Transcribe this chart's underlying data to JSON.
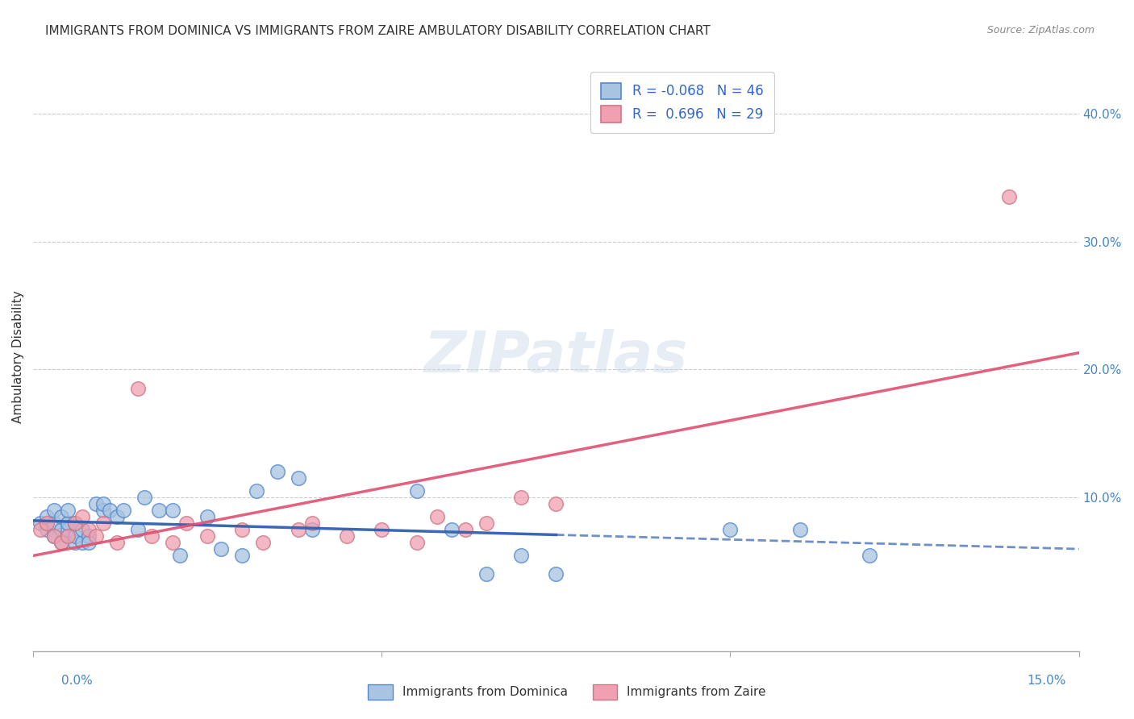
{
  "title": "IMMIGRANTS FROM DOMINICA VS IMMIGRANTS FROM ZAIRE AMBULATORY DISABILITY CORRELATION CHART",
  "source": "Source: ZipAtlas.com",
  "ylabel": "Ambulatory Disability",
  "yticks": [
    "40.0%",
    "30.0%",
    "20.0%",
    "10.0%"
  ],
  "ytick_vals": [
    0.4,
    0.3,
    0.2,
    0.1
  ],
  "xlim": [
    0.0,
    0.15
  ],
  "ylim": [
    -0.02,
    0.44
  ],
  "legend_r_dominica": "-0.068",
  "legend_n_dominica": "46",
  "legend_r_zaire": "0.696",
  "legend_n_zaire": "29",
  "color_dominica": "#a8c4e0",
  "color_dominica_edge": "#5588cc",
  "color_dominica_line": "#3060b0",
  "color_zaire": "#f0a0b0",
  "color_zaire_edge": "#cc7788",
  "color_zaire_line": "#e05070",
  "watermark": "ZIPatlas",
  "background_color": "#ffffff",
  "grid_color": "#cccccc",
  "dominica_x": [
    0.001,
    0.002,
    0.002,
    0.003,
    0.003,
    0.003,
    0.004,
    0.004,
    0.004,
    0.005,
    0.005,
    0.005,
    0.005,
    0.006,
    0.006,
    0.006,
    0.007,
    0.007,
    0.008,
    0.008,
    0.009,
    0.01,
    0.01,
    0.011,
    0.012,
    0.013,
    0.015,
    0.016,
    0.018,
    0.02,
    0.021,
    0.025,
    0.027,
    0.03,
    0.032,
    0.035,
    0.038,
    0.04,
    0.055,
    0.06,
    0.065,
    0.07,
    0.075,
    0.1,
    0.11,
    0.12
  ],
  "dominica_y": [
    0.08,
    0.075,
    0.085,
    0.07,
    0.08,
    0.09,
    0.065,
    0.075,
    0.085,
    0.07,
    0.075,
    0.08,
    0.09,
    0.065,
    0.07,
    0.08,
    0.065,
    0.075,
    0.07,
    0.065,
    0.095,
    0.09,
    0.095,
    0.09,
    0.085,
    0.09,
    0.075,
    0.1,
    0.09,
    0.09,
    0.055,
    0.085,
    0.06,
    0.055,
    0.105,
    0.12,
    0.115,
    0.075,
    0.105,
    0.075,
    0.04,
    0.055,
    0.04,
    0.075,
    0.075,
    0.055
  ],
  "zaire_x": [
    0.001,
    0.002,
    0.003,
    0.004,
    0.005,
    0.006,
    0.007,
    0.008,
    0.009,
    0.01,
    0.012,
    0.015,
    0.017,
    0.02,
    0.022,
    0.025,
    0.03,
    0.033,
    0.038,
    0.04,
    0.045,
    0.05,
    0.055,
    0.058,
    0.062,
    0.065,
    0.07,
    0.075,
    0.14
  ],
  "zaire_y": [
    0.075,
    0.08,
    0.07,
    0.065,
    0.07,
    0.08,
    0.085,
    0.075,
    0.07,
    0.08,
    0.065,
    0.185,
    0.07,
    0.065,
    0.08,
    0.07,
    0.075,
    0.065,
    0.075,
    0.08,
    0.07,
    0.075,
    0.065,
    0.085,
    0.075,
    0.08,
    0.1,
    0.095,
    0.335
  ]
}
